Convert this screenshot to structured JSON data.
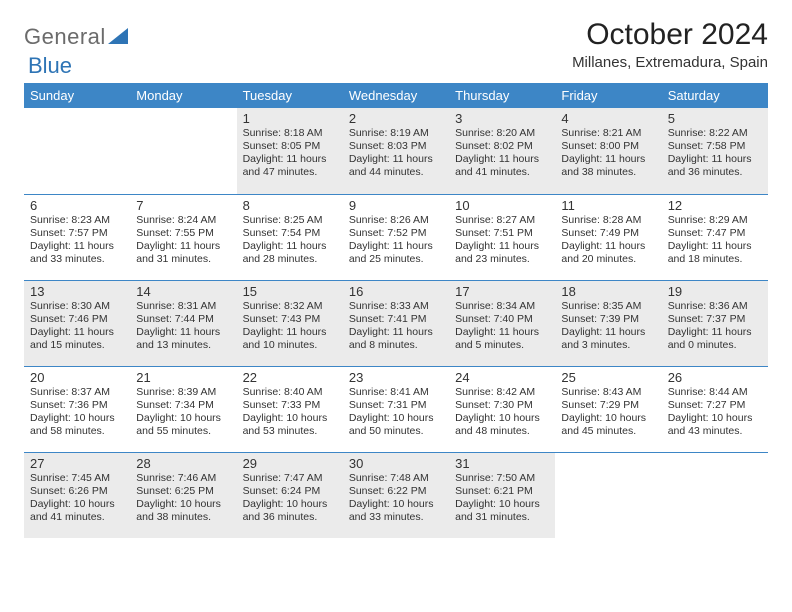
{
  "brand": {
    "part1": "General",
    "part2": "Blue"
  },
  "colors": {
    "header_bg": "#3d86c6",
    "header_text": "#ffffff",
    "border": "#3d86c6",
    "shade_bg": "#ebebeb",
    "text": "#333333",
    "logo_gray": "#6b6b6b",
    "logo_blue": "#2e74b5"
  },
  "title": "October 2024",
  "location": "Millanes, Extremadura, Spain",
  "day_headers": [
    "Sunday",
    "Monday",
    "Tuesday",
    "Wednesday",
    "Thursday",
    "Friday",
    "Saturday"
  ],
  "weeks": [
    [
      {
        "shade": false
      },
      {
        "shade": false
      },
      {
        "day": "1",
        "shade": true,
        "sunrise": "Sunrise: 8:18 AM",
        "sunset": "Sunset: 8:05 PM",
        "daylight": "Daylight: 11 hours and 47 minutes."
      },
      {
        "day": "2",
        "shade": true,
        "sunrise": "Sunrise: 8:19 AM",
        "sunset": "Sunset: 8:03 PM",
        "daylight": "Daylight: 11 hours and 44 minutes."
      },
      {
        "day": "3",
        "shade": true,
        "sunrise": "Sunrise: 8:20 AM",
        "sunset": "Sunset: 8:02 PM",
        "daylight": "Daylight: 11 hours and 41 minutes."
      },
      {
        "day": "4",
        "shade": true,
        "sunrise": "Sunrise: 8:21 AM",
        "sunset": "Sunset: 8:00 PM",
        "daylight": "Daylight: 11 hours and 38 minutes."
      },
      {
        "day": "5",
        "shade": true,
        "sunrise": "Sunrise: 8:22 AM",
        "sunset": "Sunset: 7:58 PM",
        "daylight": "Daylight: 11 hours and 36 minutes."
      }
    ],
    [
      {
        "day": "6",
        "shade": false,
        "sunrise": "Sunrise: 8:23 AM",
        "sunset": "Sunset: 7:57 PM",
        "daylight": "Daylight: 11 hours and 33 minutes."
      },
      {
        "day": "7",
        "shade": false,
        "sunrise": "Sunrise: 8:24 AM",
        "sunset": "Sunset: 7:55 PM",
        "daylight": "Daylight: 11 hours and 31 minutes."
      },
      {
        "day": "8",
        "shade": false,
        "sunrise": "Sunrise: 8:25 AM",
        "sunset": "Sunset: 7:54 PM",
        "daylight": "Daylight: 11 hours and 28 minutes."
      },
      {
        "day": "9",
        "shade": false,
        "sunrise": "Sunrise: 8:26 AM",
        "sunset": "Sunset: 7:52 PM",
        "daylight": "Daylight: 11 hours and 25 minutes."
      },
      {
        "day": "10",
        "shade": false,
        "sunrise": "Sunrise: 8:27 AM",
        "sunset": "Sunset: 7:51 PM",
        "daylight": "Daylight: 11 hours and 23 minutes."
      },
      {
        "day": "11",
        "shade": false,
        "sunrise": "Sunrise: 8:28 AM",
        "sunset": "Sunset: 7:49 PM",
        "daylight": "Daylight: 11 hours and 20 minutes."
      },
      {
        "day": "12",
        "shade": false,
        "sunrise": "Sunrise: 8:29 AM",
        "sunset": "Sunset: 7:47 PM",
        "daylight": "Daylight: 11 hours and 18 minutes."
      }
    ],
    [
      {
        "day": "13",
        "shade": true,
        "sunrise": "Sunrise: 8:30 AM",
        "sunset": "Sunset: 7:46 PM",
        "daylight": "Daylight: 11 hours and 15 minutes."
      },
      {
        "day": "14",
        "shade": true,
        "sunrise": "Sunrise: 8:31 AM",
        "sunset": "Sunset: 7:44 PM",
        "daylight": "Daylight: 11 hours and 13 minutes."
      },
      {
        "day": "15",
        "shade": true,
        "sunrise": "Sunrise: 8:32 AM",
        "sunset": "Sunset: 7:43 PM",
        "daylight": "Daylight: 11 hours and 10 minutes."
      },
      {
        "day": "16",
        "shade": true,
        "sunrise": "Sunrise: 8:33 AM",
        "sunset": "Sunset: 7:41 PM",
        "daylight": "Daylight: 11 hours and 8 minutes."
      },
      {
        "day": "17",
        "shade": true,
        "sunrise": "Sunrise: 8:34 AM",
        "sunset": "Sunset: 7:40 PM",
        "daylight": "Daylight: 11 hours and 5 minutes."
      },
      {
        "day": "18",
        "shade": true,
        "sunrise": "Sunrise: 8:35 AM",
        "sunset": "Sunset: 7:39 PM",
        "daylight": "Daylight: 11 hours and 3 minutes."
      },
      {
        "day": "19",
        "shade": true,
        "sunrise": "Sunrise: 8:36 AM",
        "sunset": "Sunset: 7:37 PM",
        "daylight": "Daylight: 11 hours and 0 minutes."
      }
    ],
    [
      {
        "day": "20",
        "shade": false,
        "sunrise": "Sunrise: 8:37 AM",
        "sunset": "Sunset: 7:36 PM",
        "daylight": "Daylight: 10 hours and 58 minutes."
      },
      {
        "day": "21",
        "shade": false,
        "sunrise": "Sunrise: 8:39 AM",
        "sunset": "Sunset: 7:34 PM",
        "daylight": "Daylight: 10 hours and 55 minutes."
      },
      {
        "day": "22",
        "shade": false,
        "sunrise": "Sunrise: 8:40 AM",
        "sunset": "Sunset: 7:33 PM",
        "daylight": "Daylight: 10 hours and 53 minutes."
      },
      {
        "day": "23",
        "shade": false,
        "sunrise": "Sunrise: 8:41 AM",
        "sunset": "Sunset: 7:31 PM",
        "daylight": "Daylight: 10 hours and 50 minutes."
      },
      {
        "day": "24",
        "shade": false,
        "sunrise": "Sunrise: 8:42 AM",
        "sunset": "Sunset: 7:30 PM",
        "daylight": "Daylight: 10 hours and 48 minutes."
      },
      {
        "day": "25",
        "shade": false,
        "sunrise": "Sunrise: 8:43 AM",
        "sunset": "Sunset: 7:29 PM",
        "daylight": "Daylight: 10 hours and 45 minutes."
      },
      {
        "day": "26",
        "shade": false,
        "sunrise": "Sunrise: 8:44 AM",
        "sunset": "Sunset: 7:27 PM",
        "daylight": "Daylight: 10 hours and 43 minutes."
      }
    ],
    [
      {
        "day": "27",
        "shade": true,
        "sunrise": "Sunrise: 7:45 AM",
        "sunset": "Sunset: 6:26 PM",
        "daylight": "Daylight: 10 hours and 41 minutes."
      },
      {
        "day": "28",
        "shade": true,
        "sunrise": "Sunrise: 7:46 AM",
        "sunset": "Sunset: 6:25 PM",
        "daylight": "Daylight: 10 hours and 38 minutes."
      },
      {
        "day": "29",
        "shade": true,
        "sunrise": "Sunrise: 7:47 AM",
        "sunset": "Sunset: 6:24 PM",
        "daylight": "Daylight: 10 hours and 36 minutes."
      },
      {
        "day": "30",
        "shade": true,
        "sunrise": "Sunrise: 7:48 AM",
        "sunset": "Sunset: 6:22 PM",
        "daylight": "Daylight: 10 hours and 33 minutes."
      },
      {
        "day": "31",
        "shade": true,
        "sunrise": "Sunrise: 7:50 AM",
        "sunset": "Sunset: 6:21 PM",
        "daylight": "Daylight: 10 hours and 31 minutes."
      },
      {
        "shade": false
      },
      {
        "shade": false
      }
    ]
  ]
}
